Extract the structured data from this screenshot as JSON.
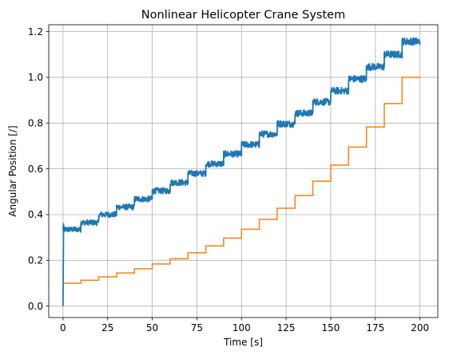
{
  "chart_data": {
    "type": "line",
    "title": "Nonlinear Helicopter Crane System",
    "xlabel": "Time [s]",
    "ylabel": "Angular Position [/]",
    "xlim": [
      -8,
      210
    ],
    "ylim": [
      -0.05,
      1.23
    ],
    "xticks": [
      0,
      25,
      50,
      75,
      100,
      125,
      150,
      175,
      200
    ],
    "yticks": [
      0.0,
      0.2,
      0.4,
      0.6,
      0.8,
      1.0,
      1.2
    ],
    "xtick_labels": [
      "0",
      "25",
      "50",
      "75",
      "100",
      "125",
      "150",
      "175",
      "200"
    ],
    "ytick_labels": [
      "0.0",
      "0.2",
      "0.4",
      "0.6",
      "0.8",
      "1.0",
      "1.2"
    ],
    "grid": true,
    "series": [
      {
        "color": "#1f77b4",
        "kind": "noisy-staircase",
        "start": {
          "x": 0,
          "y": 0.0
        },
        "steps": [
          {
            "x0": 0,
            "x1": 10,
            "y": 0.335
          },
          {
            "x0": 10,
            "x1": 20,
            "y": 0.365
          },
          {
            "x0": 20,
            "x1": 30,
            "y": 0.4
          },
          {
            "x0": 30,
            "x1": 40,
            "y": 0.433
          },
          {
            "x0": 40,
            "x1": 50,
            "y": 0.468
          },
          {
            "x0": 50,
            "x1": 60,
            "y": 0.504
          },
          {
            "x0": 60,
            "x1": 70,
            "y": 0.54
          },
          {
            "x0": 70,
            "x1": 80,
            "y": 0.58
          },
          {
            "x0": 80,
            "x1": 90,
            "y": 0.622
          },
          {
            "x0": 90,
            "x1": 100,
            "y": 0.665
          },
          {
            "x0": 100,
            "x1": 110,
            "y": 0.706
          },
          {
            "x0": 110,
            "x1": 120,
            "y": 0.752
          },
          {
            "x0": 120,
            "x1": 130,
            "y": 0.797
          },
          {
            "x0": 130,
            "x1": 140,
            "y": 0.843
          },
          {
            "x0": 140,
            "x1": 150,
            "y": 0.893
          },
          {
            "x0": 150,
            "x1": 160,
            "y": 0.941
          },
          {
            "x0": 160,
            "x1": 170,
            "y": 0.993
          },
          {
            "x0": 170,
            "x1": 180,
            "y": 1.046
          },
          {
            "x0": 180,
            "x1": 190,
            "y": 1.1
          },
          {
            "x0": 190,
            "x1": 200,
            "y": 1.157
          }
        ]
      },
      {
        "color": "#ff7f0e",
        "kind": "staircase",
        "x": [
          0,
          10,
          20,
          30,
          40,
          50,
          60,
          70,
          80,
          90,
          100,
          110,
          120,
          130,
          140,
          150,
          160,
          170,
          180,
          190,
          200
        ],
        "y": [
          0.1,
          0.113,
          0.128,
          0.145,
          0.163,
          0.184,
          0.207,
          0.233,
          0.263,
          0.297,
          0.336,
          0.379,
          0.428,
          0.483,
          0.546,
          0.616,
          0.695,
          0.783,
          0.885,
          1.0,
          1.0
        ]
      }
    ]
  }
}
